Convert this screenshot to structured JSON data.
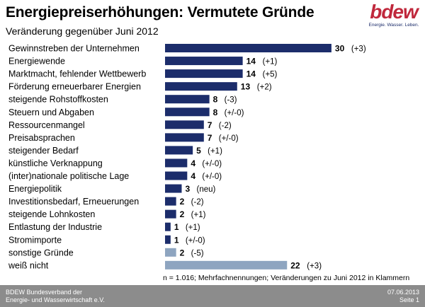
{
  "header": {
    "title": "Energiepreiserhöhungen: Vermutete Gründe",
    "subtitle": "Veränderung gegenüber Juni 2012"
  },
  "logo": {
    "word": "bdew",
    "tagline": "Energie. Wasser. Leben."
  },
  "footnote": "n = 1.016; Mehrfachnennungen; Veränderungen zu Juni 2012 in Klammern",
  "footer": {
    "org_line1": "BDEW Bundesverband der",
    "org_line2": "Energie- und Wasserwirtschaft e.V.",
    "date": "07.06.2013",
    "page": "Seite 1"
  },
  "colors": {
    "primary_bar": "#1c2d6b",
    "secondary_bar": "#8ea5c0",
    "footer_bg": "#8c8c8c",
    "logo": "#c0283c"
  },
  "chart_data": {
    "type": "bar",
    "orientation": "horizontal",
    "categories": [
      "Gewinnstreben der Unternehmen",
      "Energiewende",
      "Marktmacht, fehlender Wettbewerb",
      "Förderung erneuerbarer Energien",
      "steigende Rohstoffkosten",
      "Steuern und Abgaben",
      "Ressourcenmangel",
      "Preisabsprachen",
      "steigender Bedarf",
      "künstliche Verknappung",
      "(inter)nationale politische Lage",
      "Energiepolitik",
      "Investitionsbedarf, Erneuerungen",
      "steigende Lohnkosten",
      "Entlastung der Industrie",
      "Stromimporte",
      "sonstige Gründe",
      "weiß nicht"
    ],
    "values": [
      30,
      14,
      14,
      13,
      8,
      8,
      7,
      7,
      5,
      4,
      4,
      3,
      2,
      2,
      1,
      1,
      2,
      22
    ],
    "changes": [
      "(+3)",
      "(+1)",
      "(+5)",
      "(+2)",
      "(-3)",
      "(+/-0)",
      "(-2)",
      "(+/-0)",
      "(+1)",
      "(+/-0)",
      "(+/-0)",
      "(neu)",
      "(-2)",
      "(+1)",
      "(+1)",
      "(+/-0)",
      "(-5)",
      "(+3)"
    ],
    "bar_style": [
      "primary",
      "primary",
      "primary",
      "primary",
      "primary",
      "primary",
      "primary",
      "primary",
      "primary",
      "primary",
      "primary",
      "primary",
      "primary",
      "primary",
      "primary",
      "primary",
      "secondary",
      "secondary"
    ],
    "xlim": [
      0,
      30
    ],
    "grid": false,
    "legend": "none"
  }
}
